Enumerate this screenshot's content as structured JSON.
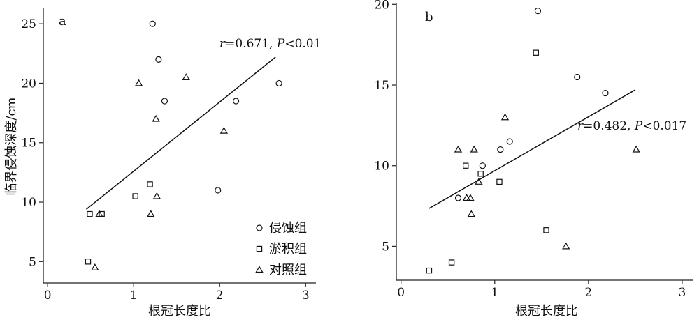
{
  "chart_data": [
    {
      "type": "scatter",
      "panel_label": "a",
      "xlabel": "根冠长度比",
      "ylabel": "临界侵蚀深度/cm",
      "xlim": [
        -0.05,
        3.12
      ],
      "ylim": [
        3.2,
        26.3
      ],
      "xticks": [
        "0",
        "1",
        "2",
        "3"
      ],
      "xtick_values": [
        0,
        1,
        2,
        3
      ],
      "yticks": [
        "5",
        "10",
        "15",
        "20",
        "25"
      ],
      "ytick_values": [
        5,
        10,
        15,
        20,
        25
      ],
      "grid": false,
      "legend_position": "bottom-right",
      "annotation": {
        "r_sym": "r",
        "r_text": "=0.671, ",
        "p_sym": "P",
        "p_text": "<0.01"
      },
      "series": [
        {
          "name": "侵蚀组",
          "marker": "circle",
          "x": [
            1.22,
            1.29,
            1.36,
            2.19,
            2.69,
            1.98
          ],
          "y": [
            25.0,
            22.0,
            18.5,
            18.5,
            20.0,
            11.0
          ]
        },
        {
          "name": "淤积组",
          "marker": "square",
          "x": [
            0.47,
            0.49,
            0.63,
            1.02,
            1.19
          ],
          "y": [
            5.0,
            9.0,
            9.0,
            10.5,
            11.5
          ]
        },
        {
          "name": "对照组",
          "marker": "triangle",
          "x": [
            0.55,
            0.6,
            1.06,
            1.26,
            1.2,
            1.27,
            1.61,
            2.05
          ],
          "y": [
            4.5,
            9.0,
            20.0,
            17.0,
            9.0,
            10.5,
            20.5,
            16.0
          ]
        }
      ],
      "regression": {
        "x1": 0.45,
        "y1": 9.4,
        "x2": 2.65,
        "y2": 22.2
      }
    },
    {
      "type": "scatter",
      "panel_label": "b",
      "xlabel": "根冠长度比",
      "ylabel": "",
      "xlim": [
        -0.05,
        3.12
      ],
      "ylim": [
        2.9,
        20.1
      ],
      "xticks": [
        "0",
        "1",
        "2",
        "3"
      ],
      "xtick_values": [
        0,
        1,
        2,
        3
      ],
      "yticks": [
        "5",
        "10",
        "15",
        "20"
      ],
      "ytick_values": [
        5,
        10,
        15,
        20
      ],
      "grid": false,
      "annotation": {
        "r_sym": "r",
        "r_text": "=0.482, ",
        "p_sym": "P",
        "p_text": "<0.017"
      },
      "series": [
        {
          "name": "侵蚀组",
          "marker": "circle",
          "x": [
            1.46,
            1.88,
            2.18,
            1.16,
            1.06,
            0.87,
            0.61
          ],
          "y": [
            19.6,
            15.5,
            14.5,
            11.5,
            11.0,
            10.0,
            8.0
          ]
        },
        {
          "name": "淤积组",
          "marker": "square",
          "x": [
            1.44,
            0.3,
            0.54,
            0.69,
            0.85,
            1.05,
            1.55
          ],
          "y": [
            17.0,
            3.5,
            4.0,
            10.0,
            9.5,
            9.0,
            6.0
          ]
        },
        {
          "name": "对照组",
          "marker": "triangle",
          "x": [
            0.61,
            0.78,
            1.11,
            0.83,
            0.7,
            0.74,
            0.75,
            1.76,
            2.51
          ],
          "y": [
            11.0,
            11.0,
            13.0,
            9.0,
            8.0,
            8.0,
            7.0,
            5.0,
            11.0
          ]
        }
      ],
      "regression": {
        "x1": 0.3,
        "y1": 7.35,
        "x2": 2.5,
        "y2": 14.7
      }
    }
  ]
}
